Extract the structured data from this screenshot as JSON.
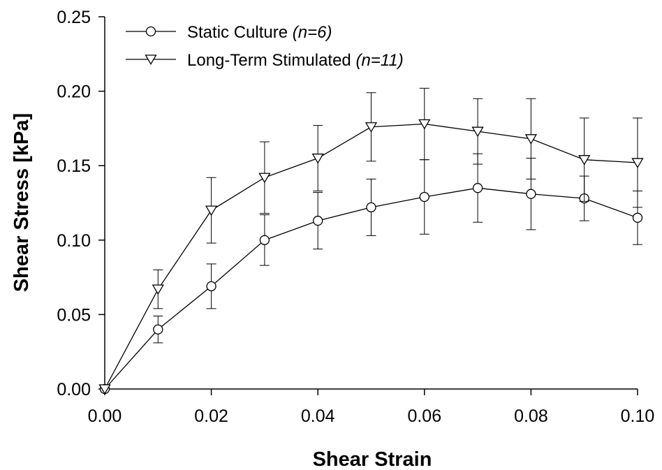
{
  "chart_data": {
    "type": "line",
    "title": "",
    "xlabel": "Shear Strain",
    "ylabel": "Shear Stress [kPa]",
    "xlim": [
      0.0,
      0.1
    ],
    "ylim": [
      0.0,
      0.25
    ],
    "x_ticks": [
      "0.00",
      "0.02",
      "0.04",
      "0.06",
      "0.08",
      "0.10"
    ],
    "y_ticks": [
      "0.00",
      "0.05",
      "0.10",
      "0.15",
      "0.20",
      "0.25"
    ],
    "x_tick_values": [
      0.0,
      0.02,
      0.04,
      0.06,
      0.08,
      0.1
    ],
    "y_tick_values": [
      0.0,
      0.05,
      0.1,
      0.15,
      0.2,
      0.25
    ],
    "grid": false,
    "legend_position": "top-left",
    "x": [
      0.0,
      0.01,
      0.02,
      0.03,
      0.04,
      0.05,
      0.06,
      0.07,
      0.08,
      0.09,
      0.1
    ],
    "series": [
      {
        "name": "Static Culture",
        "n_label": "(n=6)",
        "marker": "circle",
        "values": [
          0.0,
          0.04,
          0.069,
          0.1,
          0.113,
          0.122,
          0.129,
          0.135,
          0.131,
          0.128,
          0.115
        ],
        "error": [
          0.0,
          0.009,
          0.015,
          0.017,
          0.019,
          0.019,
          0.025,
          0.023,
          0.024,
          0.015,
          0.018
        ]
      },
      {
        "name": "Long-Term Stimulated",
        "n_label": "(n=11)",
        "marker": "triangle-down",
        "values": [
          0.0,
          0.067,
          0.12,
          0.142,
          0.155,
          0.176,
          0.178,
          0.173,
          0.168,
          0.154,
          0.152
        ],
        "error": [
          0.0,
          0.013,
          0.022,
          0.024,
          0.022,
          0.023,
          0.024,
          0.022,
          0.027,
          0.028,
          0.03
        ]
      }
    ]
  }
}
